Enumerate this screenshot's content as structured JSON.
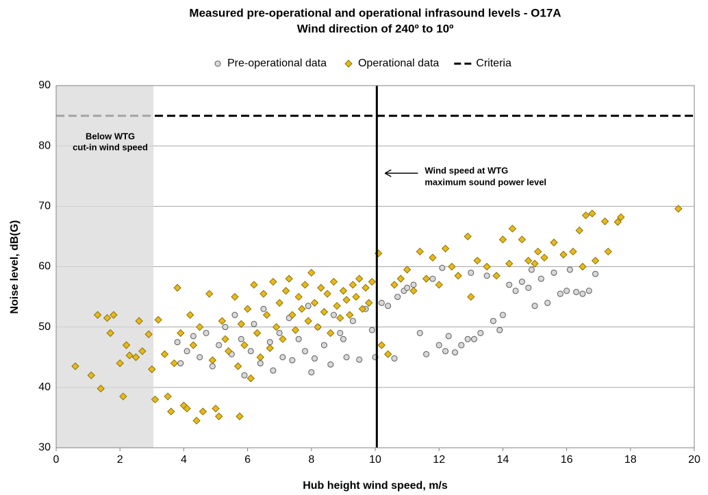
{
  "chart_data": {
    "type": "scatter",
    "title": "Measured pre-operational and operational infrasound levels - O17A",
    "subtitle": "Wind direction of 240º to 10º",
    "x_label": "Hub height wind speed, m/s",
    "y_label": "Noise level, dB(G)",
    "xlim": [
      0,
      20
    ],
    "xticks": [
      0,
      2,
      4,
      6,
      8,
      10,
      12,
      14,
      16,
      18,
      20
    ],
    "ylim": [
      30,
      90
    ],
    "yticks": [
      30,
      40,
      50,
      60,
      70,
      80,
      90
    ],
    "grid": true,
    "shaded_region": {
      "x": [
        0,
        3.05
      ],
      "color": "#d9d9d9",
      "label": [
        "Below WTG",
        "cut-in wind speed"
      ]
    },
    "vertical_line": {
      "x": 10.05,
      "color": "#000000",
      "label": [
        "Wind speed at WTG",
        "maximum sound power level"
      ]
    },
    "criteria": {
      "name": "Criteria",
      "value": 85,
      "color": "#000000"
    },
    "series": [
      {
        "name": "Pre-operational data",
        "marker": "circle",
        "color": "#d9d9d9",
        "edge": "#595959",
        "points": [
          [
            3.8,
            47.5
          ],
          [
            3.9,
            44
          ],
          [
            4.1,
            46
          ],
          [
            4.3,
            48.5
          ],
          [
            4.5,
            45
          ],
          [
            4.7,
            49
          ],
          [
            4.9,
            43.5
          ],
          [
            5.1,
            47
          ],
          [
            5.3,
            50
          ],
          [
            5.5,
            45.5
          ],
          [
            5.6,
            52
          ],
          [
            5.8,
            48
          ],
          [
            5.9,
            42
          ],
          [
            6.1,
            46
          ],
          [
            6.2,
            50.5
          ],
          [
            6.4,
            44
          ],
          [
            6.5,
            53
          ],
          [
            6.7,
            47.5
          ],
          [
            6.8,
            42.8
          ],
          [
            7.0,
            49
          ],
          [
            7.1,
            45
          ],
          [
            7.3,
            51.5
          ],
          [
            7.4,
            44.5
          ],
          [
            7.6,
            48
          ],
          [
            7.8,
            46
          ],
          [
            7.9,
            53.5
          ],
          [
            8.1,
            44.8
          ],
          [
            8.2,
            50
          ],
          [
            8.4,
            47
          ],
          [
            8.6,
            43.8
          ],
          [
            8.7,
            52
          ],
          [
            8.9,
            49
          ],
          [
            9.1,
            45
          ],
          [
            9.3,
            51
          ],
          [
            9.5,
            44.6
          ],
          [
            9.7,
            53
          ],
          [
            9.9,
            49.5
          ],
          [
            10.0,
            45
          ],
          [
            10.2,
            54
          ],
          [
            10.4,
            53.5
          ],
          [
            10.6,
            44.8
          ],
          [
            10.7,
            55
          ],
          [
            10.9,
            56
          ],
          [
            11.2,
            57
          ],
          [
            11.4,
            49
          ],
          [
            11.6,
            45.5
          ],
          [
            11.8,
            58
          ],
          [
            12.0,
            47
          ],
          [
            12.2,
            46
          ],
          [
            12.3,
            48.5
          ],
          [
            12.5,
            45.8
          ],
          [
            12.7,
            47
          ],
          [
            12.9,
            48
          ],
          [
            13.1,
            48
          ],
          [
            13.3,
            49
          ],
          [
            13.5,
            58.5
          ],
          [
            13.7,
            51
          ],
          [
            13.9,
            49.5
          ],
          [
            14.0,
            52
          ],
          [
            14.2,
            57
          ],
          [
            14.4,
            56
          ],
          [
            14.6,
            57.5
          ],
          [
            14.8,
            56.5
          ],
          [
            15.0,
            53.5
          ],
          [
            15.2,
            58
          ],
          [
            15.4,
            54
          ],
          [
            15.6,
            59
          ],
          [
            15.8,
            55.5
          ],
          [
            16.0,
            56
          ],
          [
            16.1,
            59.5
          ],
          [
            16.3,
            55.8
          ],
          [
            16.5,
            55.5
          ],
          [
            16.7,
            56
          ],
          [
            16.9,
            58.8
          ],
          [
            14.9,
            59.5
          ],
          [
            13.0,
            59
          ],
          [
            12.1,
            59.8
          ],
          [
            11.0,
            56.5
          ],
          [
            9.0,
            48
          ],
          [
            8.0,
            42.5
          ]
        ]
      },
      {
        "name": "Operational data",
        "marker": "diamond",
        "color": "#e6b91e",
        "edge": "#8c7000",
        "points": [
          [
            0.6,
            43.5
          ],
          [
            1.1,
            42
          ],
          [
            1.3,
            52
          ],
          [
            1.4,
            39.8
          ],
          [
            1.6,
            51.5
          ],
          [
            1.7,
            49
          ],
          [
            1.8,
            52
          ],
          [
            2.0,
            44
          ],
          [
            2.1,
            38.5
          ],
          [
            2.2,
            47
          ],
          [
            2.3,
            45.3
          ],
          [
            2.5,
            45
          ],
          [
            2.6,
            51
          ],
          [
            2.7,
            46
          ],
          [
            2.9,
            48.8
          ],
          [
            3.0,
            43
          ],
          [
            3.1,
            38
          ],
          [
            3.2,
            51.2
          ],
          [
            3.4,
            45.5
          ],
          [
            3.5,
            38.5
          ],
          [
            3.6,
            36
          ],
          [
            3.7,
            44
          ],
          [
            3.8,
            56.5
          ],
          [
            3.9,
            49
          ],
          [
            4.0,
            37
          ],
          [
            4.1,
            36.5
          ],
          [
            4.2,
            52
          ],
          [
            4.3,
            47
          ],
          [
            4.4,
            34.5
          ],
          [
            4.5,
            50
          ],
          [
            4.6,
            36
          ],
          [
            4.8,
            55.5
          ],
          [
            4.9,
            44.5
          ],
          [
            5.0,
            36.5
          ],
          [
            5.1,
            35.2
          ],
          [
            5.2,
            51
          ],
          [
            5.3,
            48
          ],
          [
            5.4,
            46
          ],
          [
            5.6,
            55
          ],
          [
            5.7,
            43.5
          ],
          [
            5.75,
            35.2
          ],
          [
            5.8,
            50.5
          ],
          [
            5.9,
            47
          ],
          [
            6.0,
            53
          ],
          [
            6.1,
            41.5
          ],
          [
            6.2,
            57
          ],
          [
            6.3,
            49
          ],
          [
            6.4,
            45
          ],
          [
            6.5,
            55.5
          ],
          [
            6.6,
            52
          ],
          [
            6.7,
            46.5
          ],
          [
            6.8,
            57.5
          ],
          [
            6.9,
            50
          ],
          [
            7.0,
            54
          ],
          [
            7.1,
            48
          ],
          [
            7.2,
            56
          ],
          [
            7.3,
            58
          ],
          [
            7.4,
            52
          ],
          [
            7.5,
            49.5
          ],
          [
            7.6,
            55
          ],
          [
            7.7,
            53
          ],
          [
            7.8,
            57
          ],
          [
            7.9,
            51
          ],
          [
            8.0,
            59
          ],
          [
            8.1,
            54
          ],
          [
            8.2,
            50
          ],
          [
            8.3,
            56.5
          ],
          [
            8.4,
            52.5
          ],
          [
            8.5,
            55.5
          ],
          [
            8.6,
            49
          ],
          [
            8.7,
            57.5
          ],
          [
            8.8,
            53.5
          ],
          [
            8.9,
            51.5
          ],
          [
            9.0,
            56
          ],
          [
            9.1,
            54.5
          ],
          [
            9.2,
            52
          ],
          [
            9.3,
            57
          ],
          [
            9.4,
            55
          ],
          [
            9.5,
            58
          ],
          [
            9.6,
            53
          ],
          [
            9.7,
            56.5
          ],
          [
            9.8,
            54
          ],
          [
            9.9,
            57.5
          ],
          [
            10.1,
            62.2
          ],
          [
            10.2,
            47
          ],
          [
            10.4,
            45.5
          ],
          [
            10.6,
            57
          ],
          [
            10.8,
            58
          ],
          [
            11.0,
            59.5
          ],
          [
            11.2,
            56
          ],
          [
            11.4,
            62.5
          ],
          [
            11.6,
            58
          ],
          [
            11.8,
            61.5
          ],
          [
            12.0,
            57
          ],
          [
            12.2,
            63
          ],
          [
            12.4,
            60
          ],
          [
            12.6,
            58.5
          ],
          [
            12.9,
            65
          ],
          [
            13.0,
            55
          ],
          [
            13.2,
            61
          ],
          [
            13.5,
            60
          ],
          [
            13.8,
            58.5
          ],
          [
            14.0,
            64.5
          ],
          [
            14.2,
            60.5
          ],
          [
            14.3,
            66.3
          ],
          [
            14.6,
            64.5
          ],
          [
            14.8,
            61
          ],
          [
            15.1,
            62.5
          ],
          [
            15.3,
            61.5
          ],
          [
            15.6,
            64
          ],
          [
            15.9,
            62
          ],
          [
            16.2,
            62.5
          ],
          [
            16.4,
            66
          ],
          [
            16.6,
            68.5
          ],
          [
            16.8,
            68.8
          ],
          [
            16.9,
            61
          ],
          [
            17.2,
            67.5
          ],
          [
            17.3,
            62.5
          ],
          [
            17.7,
            68.2
          ],
          [
            17.6,
            67.4
          ],
          [
            19.5,
            69.6
          ],
          [
            16.5,
            60
          ],
          [
            15.0,
            60.5
          ]
        ]
      }
    ]
  }
}
